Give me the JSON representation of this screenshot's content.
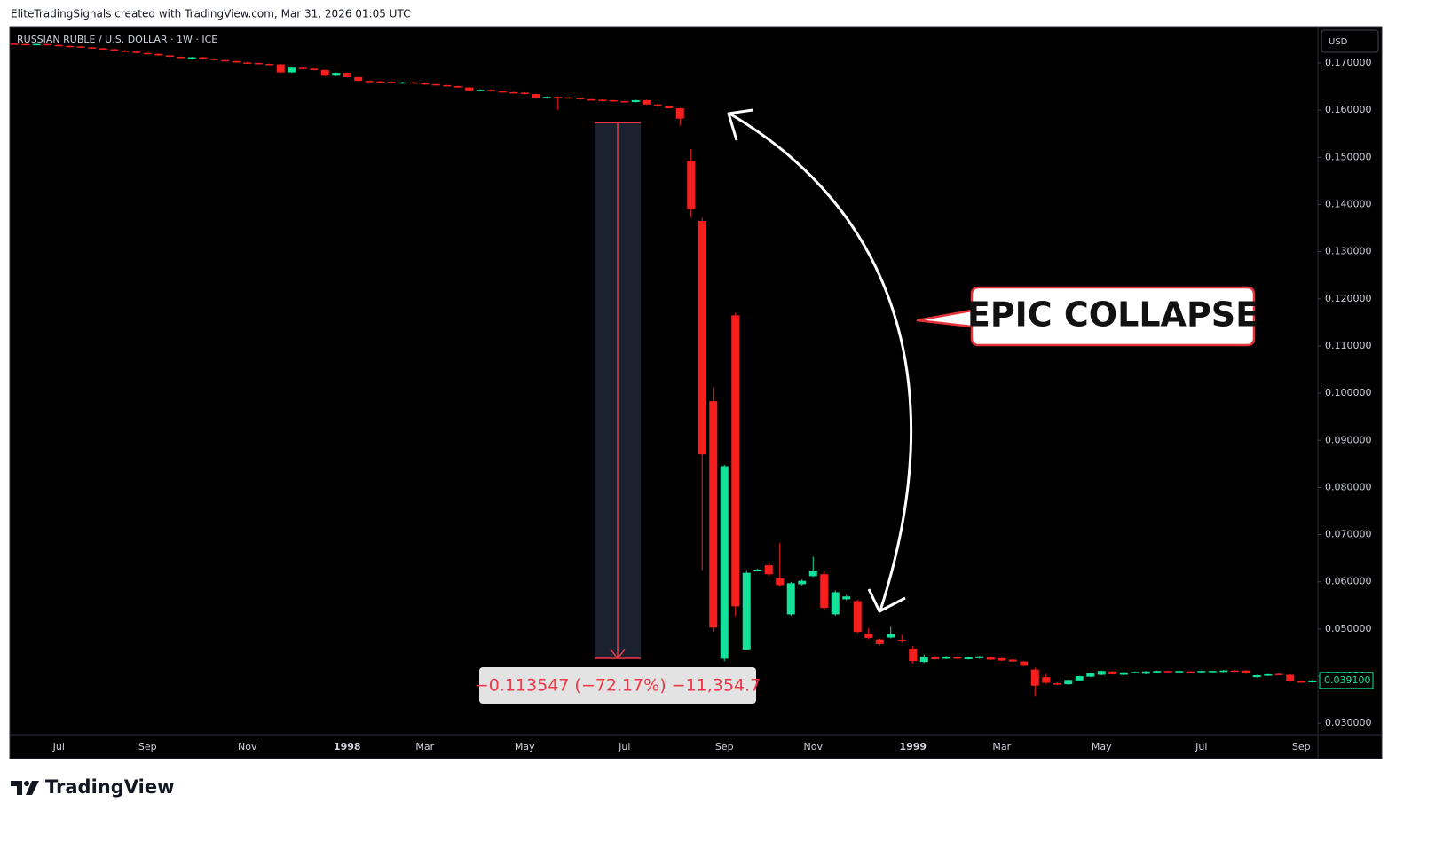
{
  "header": {
    "credit": "EliteTradingSignals created with TradingView.com, Mar 31, 2026 01:05 UTC"
  },
  "footer": {
    "brand": "TradingView"
  },
  "chart_data": {
    "type": "candlestick",
    "title": "RUSSIAN RUBLE / U.S. DOLLAR · 1W · ICE",
    "currency": "USD",
    "annotation": "EPIC COLLAPSE",
    "up_color": "#13e39a",
    "down_color": "#f5201d",
    "grid": false,
    "ylim": [
      0.0276,
      0.1777
    ],
    "yticks": [
      {
        "value": 0.03,
        "label": "0.030000"
      },
      {
        "value": 0.04,
        "label": "0.040000"
      },
      {
        "value": 0.05,
        "label": "0.050000"
      },
      {
        "value": 0.06,
        "label": "0.060000"
      },
      {
        "value": 0.07,
        "label": "0.070000"
      },
      {
        "value": 0.08,
        "label": "0.080000"
      },
      {
        "value": 0.09,
        "label": "0.090000"
      },
      {
        "value": 0.1,
        "label": "0.100000"
      },
      {
        "value": 0.11,
        "label": "0.110000"
      },
      {
        "value": 0.12,
        "label": "0.120000"
      },
      {
        "value": 0.13,
        "label": "0.130000"
      },
      {
        "value": 0.14,
        "label": "0.140000"
      },
      {
        "value": 0.15,
        "label": "0.150000"
      },
      {
        "value": 0.16,
        "label": "0.160000"
      },
      {
        "value": 0.17,
        "label": "0.170000"
      }
    ],
    "last_price": {
      "value": 0.0391,
      "label": "0.039100"
    },
    "measure": {
      "start": 0.157333,
      "end": 0.043786,
      "label": "−0.113547 (−72.17%) −11,354.7"
    },
    "categories": [
      null,
      null,
      null,
      null,
      "Jul",
      null,
      null,
      null,
      null,
      null,
      null,
      null,
      "Sep",
      null,
      null,
      null,
      null,
      null,
      null,
      null,
      null,
      "Nov",
      null,
      null,
      null,
      null,
      null,
      null,
      null,
      null,
      "1998",
      null,
      null,
      null,
      null,
      null,
      null,
      "Mar",
      null,
      null,
      null,
      null,
      null,
      null,
      null,
      null,
      "May",
      null,
      null,
      null,
      null,
      null,
      null,
      null,
      null,
      "Jul",
      null,
      null,
      null,
      null,
      null,
      null,
      null,
      null,
      "Sep",
      null,
      null,
      null,
      null,
      null,
      null,
      null,
      "Nov",
      null,
      null,
      null,
      null,
      null,
      null,
      null,
      null,
      "1999",
      null,
      null,
      null,
      null,
      null,
      null,
      null,
      "Mar",
      null,
      null,
      null,
      null,
      null,
      null,
      null,
      null,
      "May",
      null,
      null,
      null,
      null,
      null,
      null,
      null,
      null,
      "Jul",
      null,
      null,
      null,
      null,
      null,
      null,
      null,
      null,
      "Sep",
      null
    ],
    "open": [
      0.1741,
      0.174,
      0.1739,
      0.174,
      0.1738,
      0.1736,
      0.1735,
      0.1733,
      0.1731,
      0.1729,
      0.1726,
      0.1724,
      0.1721,
      0.1719,
      0.1716,
      0.1713,
      0.1711,
      0.1712,
      0.1709,
      0.1706,
      0.1704,
      0.1701,
      0.17,
      0.1698,
      0.1697,
      0.168,
      0.169,
      0.1688,
      0.1685,
      0.1673,
      0.1679,
      0.167,
      0.1662,
      0.1661,
      0.166,
      0.1658,
      0.1659,
      0.1657,
      0.1655,
      0.1653,
      0.1651,
      0.1648,
      0.1641,
      0.1643,
      0.164,
      0.1638,
      0.1637,
      0.1634,
      0.1625,
      0.1628,
      0.1627,
      0.1626,
      0.1623,
      0.1622,
      0.1621,
      0.1619,
      0.1617,
      0.1621,
      0.1612,
      0.1608,
      0.1604,
      0.1492,
      0.1365,
      0.0983,
      0.0437,
      0.1165,
      0.0455,
      0.0623,
      0.0635,
      0.0607,
      0.0531,
      0.0595,
      0.0612,
      0.0616,
      0.0531,
      0.0563,
      0.0559,
      0.049,
      0.0478,
      0.0482,
      0.0477,
      0.0458,
      0.043,
      0.0441,
      0.0437,
      0.0441,
      0.0436,
      0.0438,
      0.044,
      0.0438,
      0.0435,
      0.0431,
      0.0414,
      0.0398,
      0.0385,
      0.0383,
      0.0391,
      0.0399,
      0.0403,
      0.041,
      0.0403,
      0.0408,
      0.0405,
      0.0408,
      0.0411,
      0.0408,
      0.041,
      0.0409,
      0.041,
      0.0409,
      0.0412,
      0.0412,
      0.0398,
      0.0401,
      0.0405,
      0.0403,
      0.0389,
      0.0387
    ],
    "high": [
      0.1742,
      0.1741,
      0.1741,
      0.1741,
      0.1739,
      0.1737,
      0.1736,
      0.1734,
      0.1732,
      0.173,
      0.1727,
      0.1725,
      0.1722,
      0.172,
      0.1717,
      0.1714,
      0.1713,
      0.1713,
      0.171,
      0.1707,
      0.1705,
      0.1702,
      0.1701,
      0.1699,
      0.1698,
      0.1691,
      0.1691,
      0.1689,
      0.1686,
      0.168,
      0.168,
      0.1671,
      0.1663,
      0.1662,
      0.1661,
      0.166,
      0.166,
      0.1658,
      0.1656,
      0.1654,
      0.1652,
      0.1649,
      0.1644,
      0.1644,
      0.1641,
      0.1639,
      0.1638,
      0.1635,
      0.1629,
      0.1629,
      0.1628,
      0.1627,
      0.1624,
      0.1623,
      0.1622,
      0.162,
      0.1622,
      0.1622,
      0.1613,
      0.1609,
      0.1605,
      0.1517,
      0.1372,
      0.1012,
      0.0848,
      0.117,
      0.0625,
      0.0628,
      0.064,
      0.0682,
      0.06,
      0.0605,
      0.0653,
      0.0623,
      0.0582,
      0.0572,
      0.0562,
      0.0502,
      0.048,
      0.0505,
      0.0488,
      0.0464,
      0.0446,
      0.0443,
      0.0443,
      0.0442,
      0.0441,
      0.0443,
      0.0442,
      0.0439,
      0.0436,
      0.0432,
      0.0418,
      0.0405,
      0.0387,
      0.0393,
      0.0401,
      0.0407,
      0.0412,
      0.0411,
      0.0409,
      0.041,
      0.0411,
      0.0412,
      0.0412,
      0.0412,
      0.0411,
      0.0412,
      0.0412,
      0.0413,
      0.0413,
      0.0413,
      0.0403,
      0.0405,
      0.0406,
      0.0404,
      0.039,
      0.0392
    ],
    "low": [
      0.1739,
      0.1738,
      0.1738,
      0.1737,
      0.1735,
      0.1734,
      0.1732,
      0.173,
      0.1728,
      0.1725,
      0.1723,
      0.172,
      0.1718,
      0.1715,
      0.1712,
      0.171,
      0.171,
      0.1708,
      0.1705,
      0.1703,
      0.17,
      0.1699,
      0.1697,
      0.1696,
      0.1679,
      0.1679,
      0.1687,
      0.1684,
      0.1672,
      0.1672,
      0.1669,
      0.1661,
      0.166,
      0.1659,
      0.1657,
      0.1657,
      0.1656,
      0.1654,
      0.1652,
      0.165,
      0.1647,
      0.164,
      0.164,
      0.1639,
      0.1637,
      0.1636,
      0.1633,
      0.1624,
      0.1624,
      0.16,
      0.1625,
      0.1622,
      0.1621,
      0.162,
      0.1618,
      0.1616,
      0.1616,
      0.1611,
      0.1607,
      0.1603,
      0.1567,
      0.1372,
      0.0625,
      0.0495,
      0.0432,
      0.0527,
      0.0455,
      0.0622,
      0.0613,
      0.059,
      0.0528,
      0.0592,
      0.061,
      0.054,
      0.0528,
      0.0561,
      0.0492,
      0.0478,
      0.0465,
      0.048,
      0.047,
      0.0427,
      0.0428,
      0.0435,
      0.0436,
      0.0436,
      0.0435,
      0.0437,
      0.0434,
      0.0432,
      0.043,
      0.0421,
      0.0358,
      0.0383,
      0.0381,
      0.0382,
      0.039,
      0.0398,
      0.0402,
      0.0403,
      0.0402,
      0.0407,
      0.0404,
      0.0407,
      0.0408,
      0.0407,
      0.0408,
      0.0408,
      0.0409,
      0.0408,
      0.0409,
      0.0405,
      0.0397,
      0.04,
      0.0402,
      0.0388,
      0.0386,
      0.0386
    ],
    "close": [
      0.174,
      0.1739,
      0.174,
      0.1738,
      0.1736,
      0.1735,
      0.1733,
      0.1731,
      0.1729,
      0.1726,
      0.1724,
      0.1721,
      0.1719,
      0.1716,
      0.1713,
      0.1711,
      0.1712,
      0.1709,
      0.1706,
      0.1704,
      0.1701,
      0.17,
      0.1698,
      0.1697,
      0.168,
      0.169,
      0.1688,
      0.1685,
      0.1673,
      0.1679,
      0.167,
      0.1662,
      0.1661,
      0.166,
      0.1658,
      0.1659,
      0.1657,
      0.1655,
      0.1653,
      0.1651,
      0.1648,
      0.1641,
      0.1643,
      0.164,
      0.1638,
      0.1637,
      0.1634,
      0.1625,
      0.1628,
      0.1627,
      0.1626,
      0.1623,
      0.1622,
      0.1621,
      0.1619,
      0.1617,
      0.1621,
      0.1612,
      0.1608,
      0.1604,
      0.1582,
      0.139,
      0.087,
      0.0503,
      0.0845,
      0.0548,
      0.0619,
      0.0626,
      0.0616,
      0.0593,
      0.0597,
      0.0602,
      0.0624,
      0.0545,
      0.0578,
      0.0569,
      0.0494,
      0.0481,
      0.0468,
      0.0489,
      0.0475,
      0.0432,
      0.0441,
      0.0436,
      0.0441,
      0.0437,
      0.044,
      0.0442,
      0.0435,
      0.0433,
      0.0431,
      0.0422,
      0.038,
      0.0386,
      0.0383,
      0.0392,
      0.04,
      0.0406,
      0.0411,
      0.0404,
      0.0408,
      0.0409,
      0.041,
      0.0411,
      0.0409,
      0.0411,
      0.0409,
      0.0411,
      0.0411,
      0.0412,
      0.041,
      0.0406,
      0.0402,
      0.0404,
      0.0403,
      0.0389,
      0.0387,
      0.0391
    ]
  }
}
